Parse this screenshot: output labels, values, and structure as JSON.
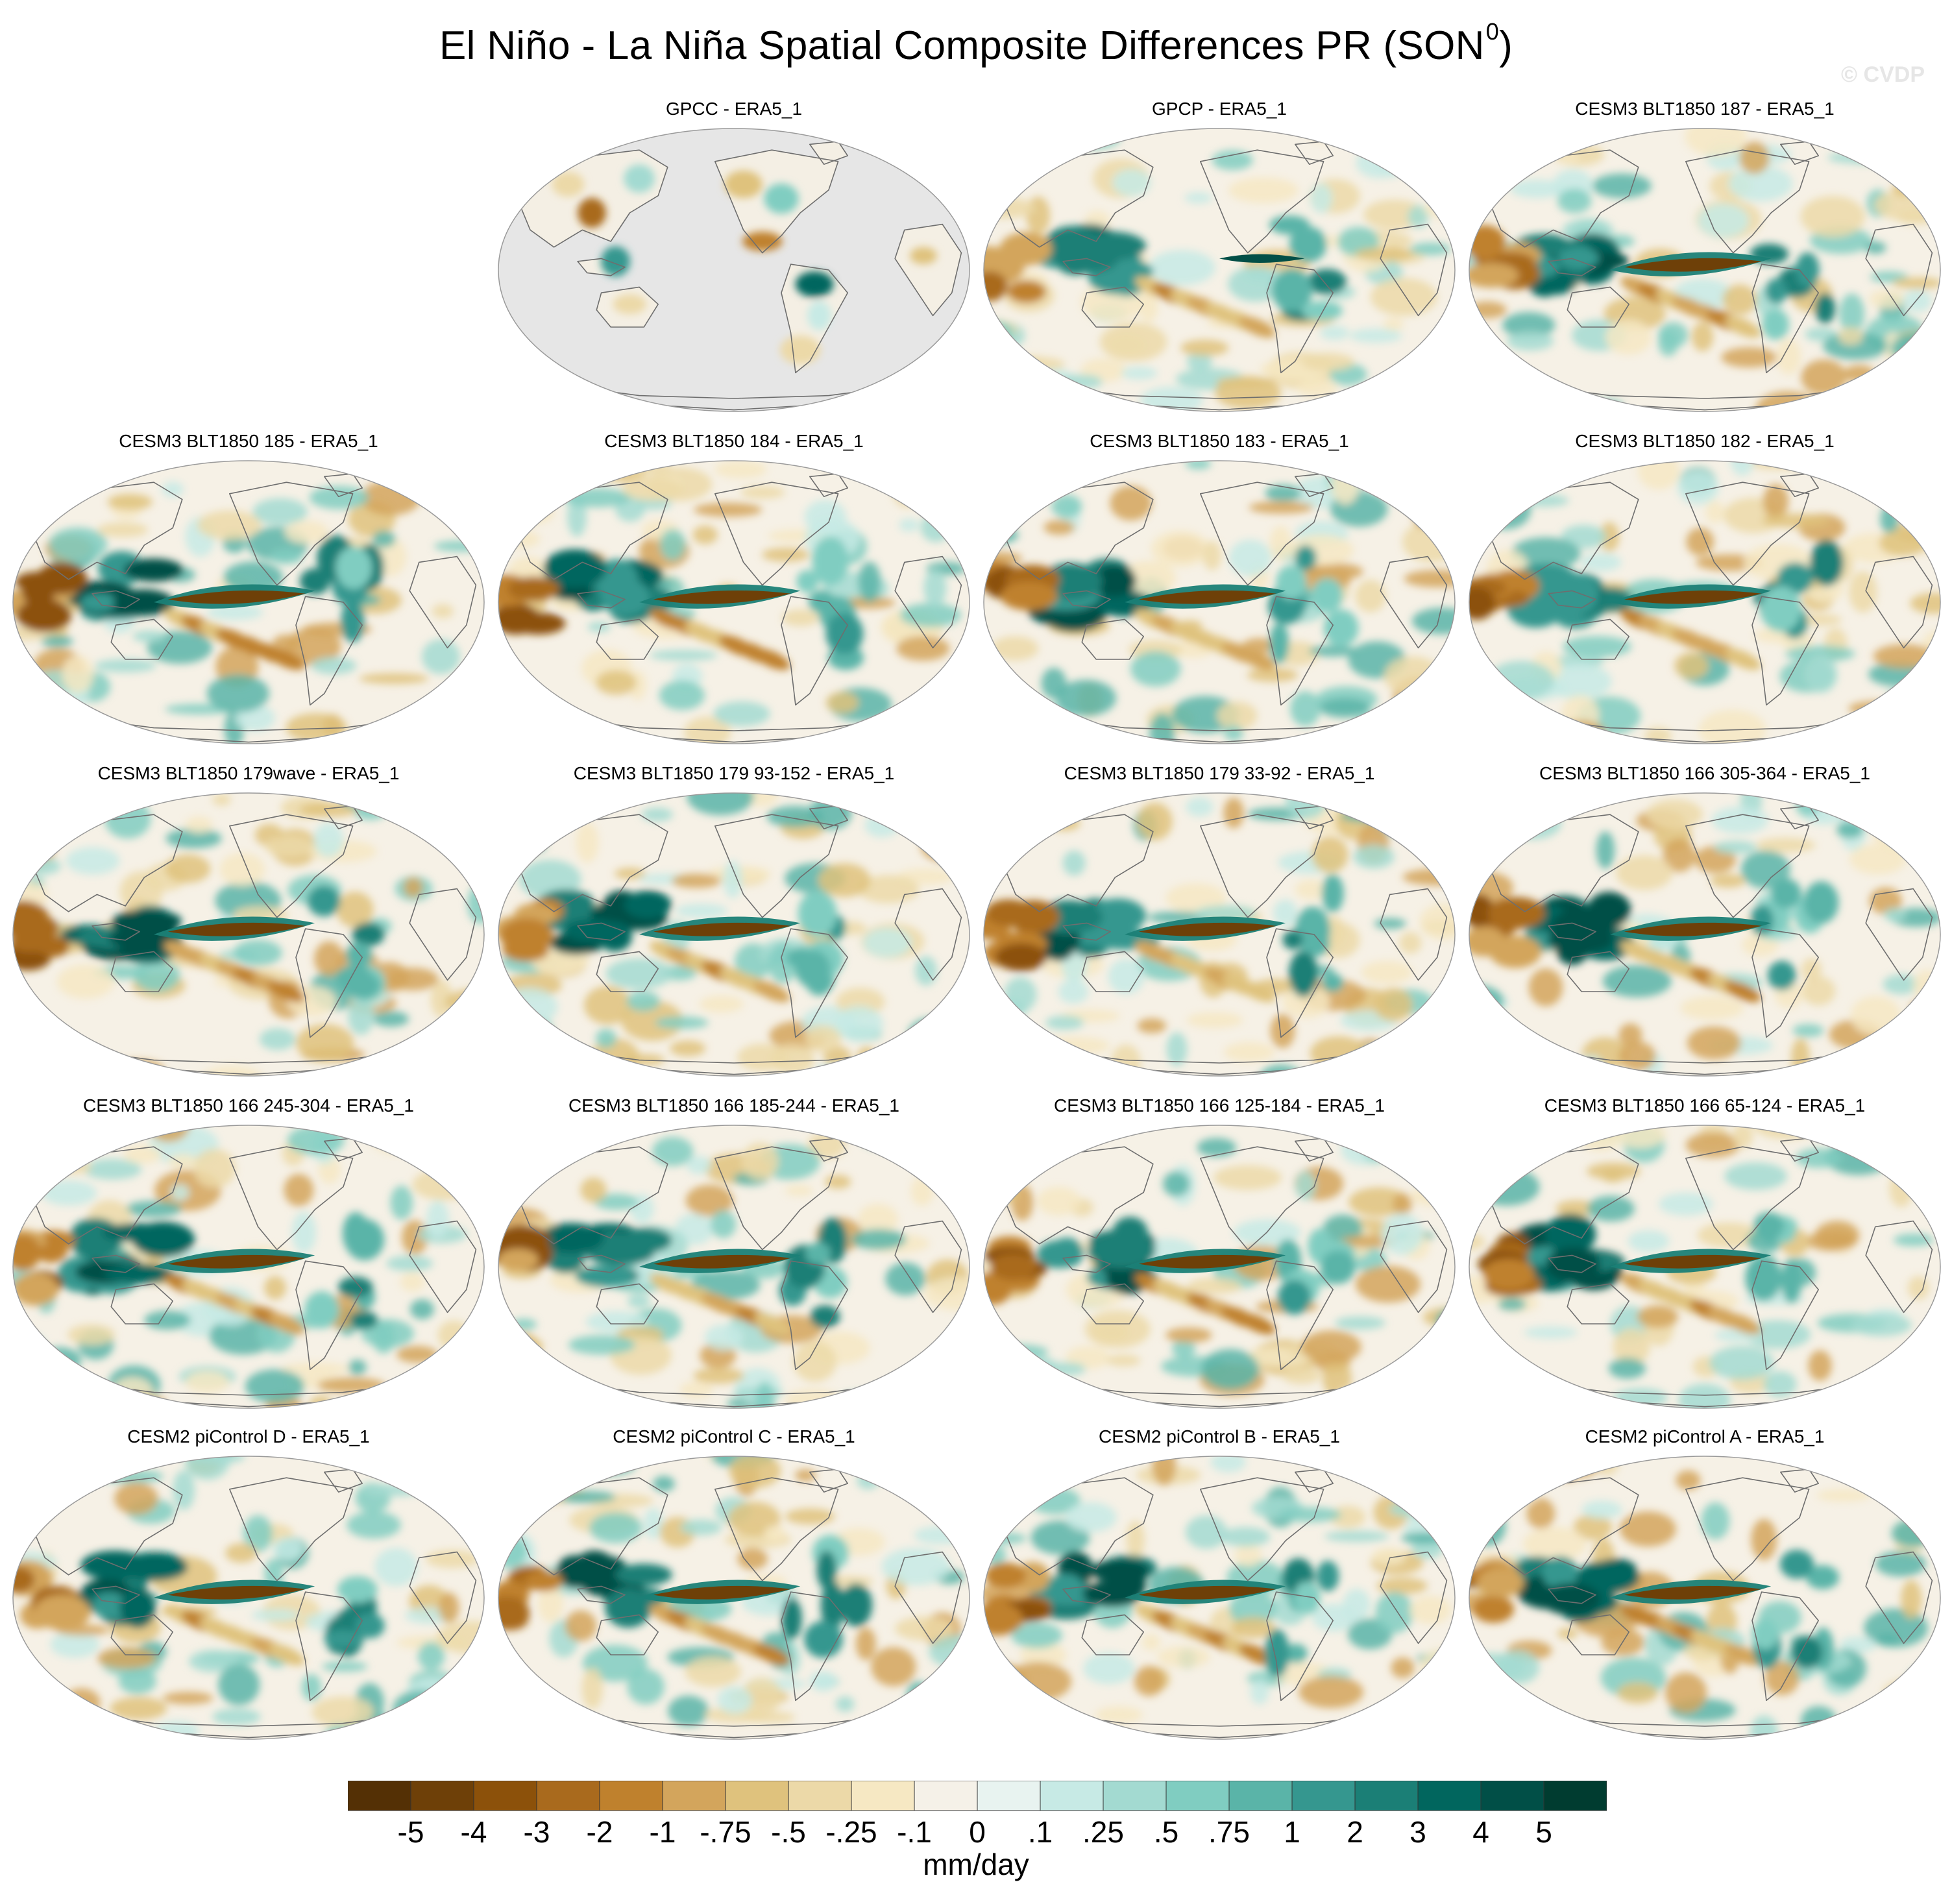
{
  "title": {
    "main": "El Niño - La Niña Spatial Composite Differences PR (SON",
    "superscript": "0",
    "close": ")"
  },
  "watermark": "© CVDP",
  "panels": [
    {
      "label": "GPCC - ERA5_1",
      "style": "land-only"
    },
    {
      "label": "GPCP - ERA5_1",
      "style": "observed"
    },
    {
      "label": "CESM3 BLT1850 187 - ERA5_1",
      "style": "model"
    },
    {
      "label": "CESM3 BLT1850 185 - ERA5_1",
      "style": "model"
    },
    {
      "label": "CESM3 BLT1850 184 - ERA5_1",
      "style": "model"
    },
    {
      "label": "CESM3 BLT1850 183 - ERA5_1",
      "style": "model"
    },
    {
      "label": "CESM3 BLT1850 182 - ERA5_1",
      "style": "model"
    },
    {
      "label": "CESM3 BLT1850 179wave - ERA5_1",
      "style": "model"
    },
    {
      "label": "CESM3 BLT1850 179 93-152 - ERA5_1",
      "style": "model"
    },
    {
      "label": "CESM3 BLT1850 179 33-92 - ERA5_1",
      "style": "model"
    },
    {
      "label": "CESM3 BLT1850 166 305-364 - ERA5_1",
      "style": "model"
    },
    {
      "label": "CESM3 BLT1850 166 245-304 - ERA5_1",
      "style": "model"
    },
    {
      "label": "CESM3 BLT1850 166 185-244 - ERA5_1",
      "style": "model"
    },
    {
      "label": "CESM3 BLT1850 166 125-184 - ERA5_1",
      "style": "model"
    },
    {
      "label": "CESM3 BLT1850 166 65-124 - ERA5_1",
      "style": "model"
    },
    {
      "label": "CESM2 piControl D - ERA5_1",
      "style": "model"
    },
    {
      "label": "CESM2 piControl C - ERA5_1",
      "style": "model"
    },
    {
      "label": "CESM2 piControl B - ERA5_1",
      "style": "model"
    },
    {
      "label": "CESM2 piControl A - ERA5_1",
      "style": "model"
    }
  ],
  "colorbar": {
    "units": "mm/day",
    "labels": [
      "-5",
      "-4",
      "-3",
      "-2",
      "-1",
      "-.75",
      "-.5",
      "-.25",
      "-.1",
      "0",
      ".1",
      ".25",
      ".5",
      ".75",
      "1",
      "2",
      "3",
      "4",
      "5"
    ],
    "colors": [
      "#543005",
      "#6e4008",
      "#8c510a",
      "#a96a1d",
      "#bf812d",
      "#d3a55c",
      "#dfc27d",
      "#ecd9a8",
      "#f6e8c3",
      "#f5f1e8",
      "#e8f3f0",
      "#c7eae5",
      "#a3dad1",
      "#80cdc1",
      "#5ab4a8",
      "#35978f",
      "#1b7f76",
      "#01665e",
      "#014f47",
      "#003c30"
    ]
  }
}
